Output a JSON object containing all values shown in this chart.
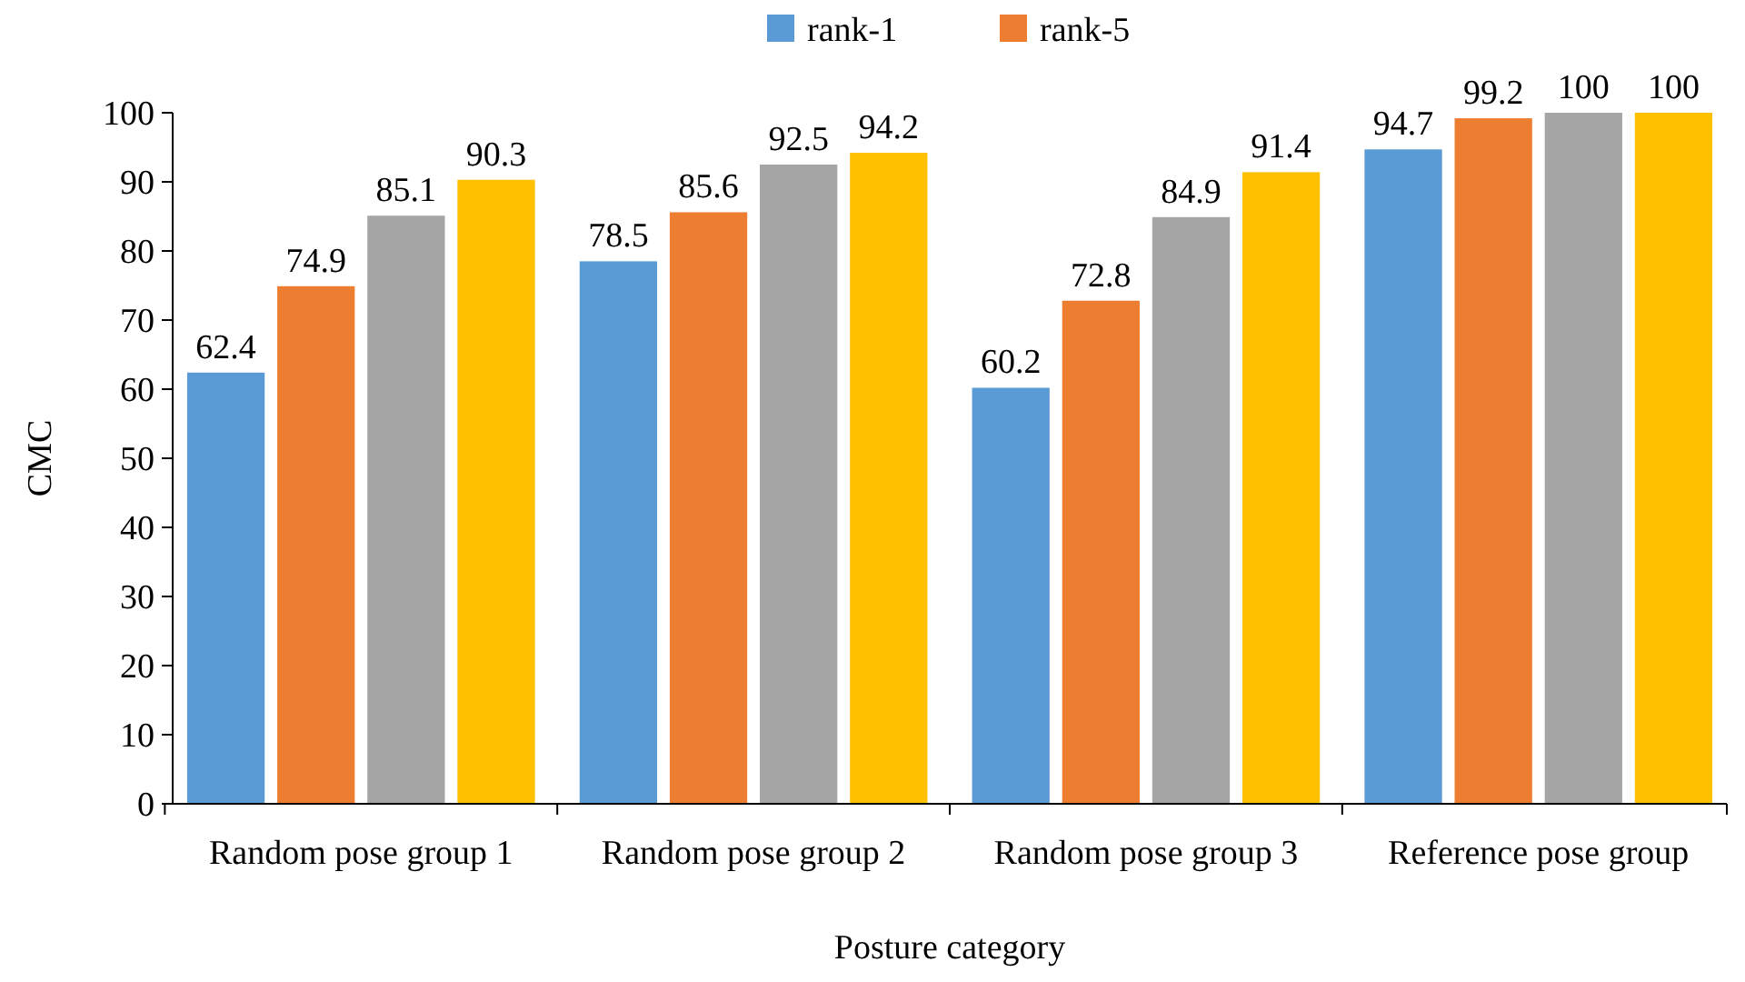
{
  "chart_data": {
    "type": "bar",
    "xlabel": "Posture category",
    "ylabel": "CMC",
    "categories": [
      "Random pose group 1",
      "Random pose group 2",
      "Random pose group 3",
      "Reference pose group"
    ],
    "series": [
      {
        "name": "rank-1",
        "color": "#5b9bd5",
        "values": [
          62.4,
          78.5,
          60.2,
          94.7
        ]
      },
      {
        "name": "rank-5",
        "color": "#ed7d31",
        "values": [
          74.9,
          85.6,
          72.8,
          99.2
        ]
      },
      {
        "color": "#a5a5a5",
        "values": [
          85.1,
          92.5,
          84.9,
          100
        ]
      },
      {
        "color": "#ffc000",
        "values": [
          90.3,
          94.2,
          91.4,
          100
        ]
      }
    ],
    "ylim": [
      0,
      100
    ],
    "yticks": [
      0,
      10,
      20,
      30,
      40,
      50,
      60,
      70,
      80,
      90,
      100
    ],
    "grid": false,
    "legend": "top",
    "data_labels": true
  }
}
